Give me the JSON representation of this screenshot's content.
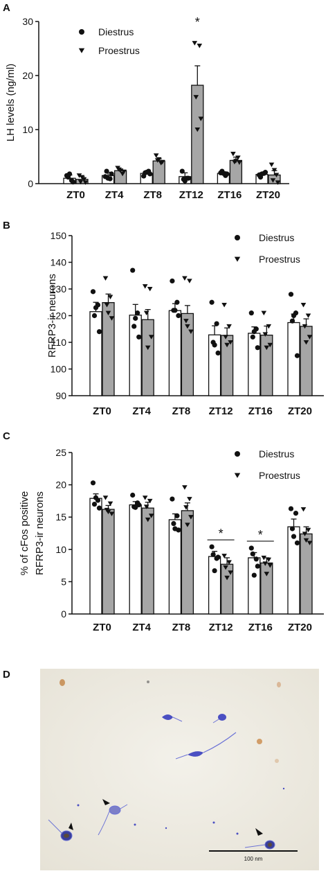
{
  "chart_data": [
    {
      "panel": "A",
      "type": "bar",
      "ylabel": "LH levels (ng/ml)",
      "ylim": [
        0,
        30
      ],
      "yticks": [
        0,
        10,
        20,
        30
      ],
      "categories": [
        "ZT0",
        "ZT4",
        "ZT8",
        "ZT12",
        "ZT16",
        "ZT20"
      ],
      "series": [
        {
          "name": "Diestrus",
          "marker": "circle",
          "fill": "#ffffff",
          "values": [
            1.0,
            1.5,
            1.9,
            1.3,
            1.9,
            1.7
          ],
          "errors": [
            0.6,
            0.6,
            0.4,
            0.7,
            0.3,
            0.3
          ],
          "points": [
            [
              1.5,
              0.6,
              1.2,
              0.3,
              1.8
            ],
            [
              1.3,
              0.9,
              2.3,
              1.8,
              1.0
            ],
            [
              1.4,
              2.3,
              2.0,
              1.8,
              2.1
            ],
            [
              2.3,
              1.0,
              0.8,
              1.0,
              0.5
            ],
            [
              2.0,
              1.5,
              2.3,
              1.8,
              1.9
            ],
            [
              1.6,
              1.9,
              1.2,
              2.1,
              1.8
            ]
          ]
        },
        {
          "name": "Proestrus",
          "marker": "triangle",
          "fill": "#a6a6a6",
          "values": [
            0.8,
            2.4,
            4.2,
            18.2,
            4.3,
            1.6
          ],
          "errors": [
            0.5,
            0.3,
            0.4,
            3.6,
            0.6,
            0.8
          ],
          "points": [
            [
              1.5,
              0.8,
              0.3,
              0.2,
              1.2
            ],
            [
              2.9,
              1.8,
              2.6,
              2.2,
              2.4
            ],
            [
              5.2,
              3.8,
              4.3,
              4.0,
              4.5
            ],
            [
              26.0,
              25.5,
              16.0,
              12.0,
              10.0
            ],
            [
              5.5,
              4.8,
              4.0,
              3.9,
              4.2
            ],
            [
              3.5,
              1.6,
              0.6,
              0.2,
              2.5
            ]
          ]
        }
      ],
      "annotations": [
        {
          "category": "ZT12",
          "text": "*"
        }
      ],
      "legend": "top-left"
    },
    {
      "panel": "B",
      "type": "bar",
      "ylabel": "RFRP3-ir neurons",
      "ylim": [
        90,
        150
      ],
      "yticks": [
        90,
        100,
        110,
        120,
        130,
        140,
        150
      ],
      "categories": [
        "ZT0",
        "ZT4",
        "ZT8",
        "ZT12",
        "ZT16",
        "ZT20"
      ],
      "series": [
        {
          "name": "Diestrus",
          "marker": "circle",
          "fill": "#ffffff",
          "values": [
            121.5,
            120.2,
            121.9,
            112.8,
            113.4,
            117.4
          ],
          "errors": [
            3.5,
            4.0,
            2.6,
            3.4,
            2.4,
            3.2
          ],
          "points": [
            [
              129,
              124,
              120,
              114,
              123
            ],
            [
              137,
              121,
              116,
              112,
              119
            ],
            [
              133,
              125,
              122,
              120,
              122
            ],
            [
              125,
              117,
              110,
              106,
              109
            ],
            [
              121,
              115,
              112,
              108,
              114
            ],
            [
              128,
              121,
              118,
              105,
              120
            ]
          ]
        },
        {
          "name": "Proestrus",
          "marker": "triangle",
          "fill": "#a6a6a6",
          "values": [
            124.9,
            118.5,
            120.8,
            112.6,
            112.7,
            116.0
          ],
          "errors": [
            3.2,
            3.8,
            3.0,
            2.8,
            3.4,
            2.8
          ],
          "points": [
            [
              134,
              127,
              124,
              119,
              121
            ],
            [
              131,
              130,
              121,
              112,
              108
            ],
            [
              134,
              133,
              118,
              114,
              116
            ],
            [
              124,
              116,
              112,
              110,
              109
            ],
            [
              121,
              116,
              113,
              109,
              108
            ],
            [
              124,
              120,
              116,
              112,
              110
            ]
          ]
        }
      ],
      "legend": "top-right"
    },
    {
      "panel": "C",
      "type": "bar",
      "ylabel": "% of cFos positive RFRP3-ir neurons",
      "ylabel_lines": [
        "% of cFos positive",
        "RFRP3-ir neurons"
      ],
      "ylim": [
        0,
        25
      ],
      "yticks": [
        0,
        5,
        10,
        15,
        20,
        25
      ],
      "categories": [
        "ZT0",
        "ZT4",
        "ZT8",
        "ZT12",
        "ZT16",
        "ZT20"
      ],
      "series": [
        {
          "name": "Diestrus",
          "marker": "circle",
          "fill": "#ffffff",
          "values": [
            17.9,
            16.9,
            14.6,
            8.9,
            8.7,
            13.5
          ],
          "errors": [
            0.7,
            0.5,
            0.9,
            0.8,
            0.8,
            1.2
          ],
          "points": [
            [
              20.3,
              17.6,
              17.0,
              16.4,
              18.0
            ],
            [
              18.4,
              17.2,
              16.6,
              16.9,
              16.5
            ],
            [
              17.8,
              15.2,
              14.0,
              13.0,
              13.2
            ],
            [
              10.4,
              8.6,
              9.2,
              8.8,
              6.7
            ],
            [
              10.2,
              8.5,
              9.3,
              7.4,
              6.0
            ],
            [
              16.3,
              15.6,
              13.2,
              11.0,
              12.0
            ]
          ]
        },
        {
          "name": "Proestrus",
          "marker": "triangle",
          "fill": "#a6a6a6",
          "values": [
            16.2,
            16.4,
            16.0,
            7.7,
            7.9,
            12.4
          ],
          "errors": [
            0.6,
            0.9,
            1.2,
            1.0,
            0.8,
            1.1
          ],
          "points": [
            [
              18.0,
              17.1,
              16.1,
              15.5,
              15.8
            ],
            [
              18.0,
              17.5,
              16.6,
              15.2,
              14.6
            ],
            [
              19.6,
              17.8,
              16.5,
              15.0,
              13.8
            ],
            [
              9.0,
              8.0,
              7.2,
              6.4,
              5.6
            ],
            [
              8.7,
              8.4,
              7.8,
              7.5,
              6.2
            ],
            [
              16.2,
              13.0,
              12.4,
              11.0,
              11.4
            ]
          ]
        }
      ],
      "annotations": [
        {
          "category": "ZT12",
          "text": "*"
        },
        {
          "category": "ZT16",
          "text": "*"
        }
      ],
      "legend": "top-right"
    }
  ],
  "panels": {
    "a": "A",
    "b": "B",
    "c": "C",
    "d": "D"
  },
  "micrograph": {
    "scale_bar_label": "100 nm",
    "cell_stain_color": "#4a4fc2",
    "cfos_stain_color": "#c98a4a"
  },
  "colors": {
    "diestrus_fill": "#ffffff",
    "proestrus_fill": "#a6a6a6",
    "axis": "#111111"
  }
}
